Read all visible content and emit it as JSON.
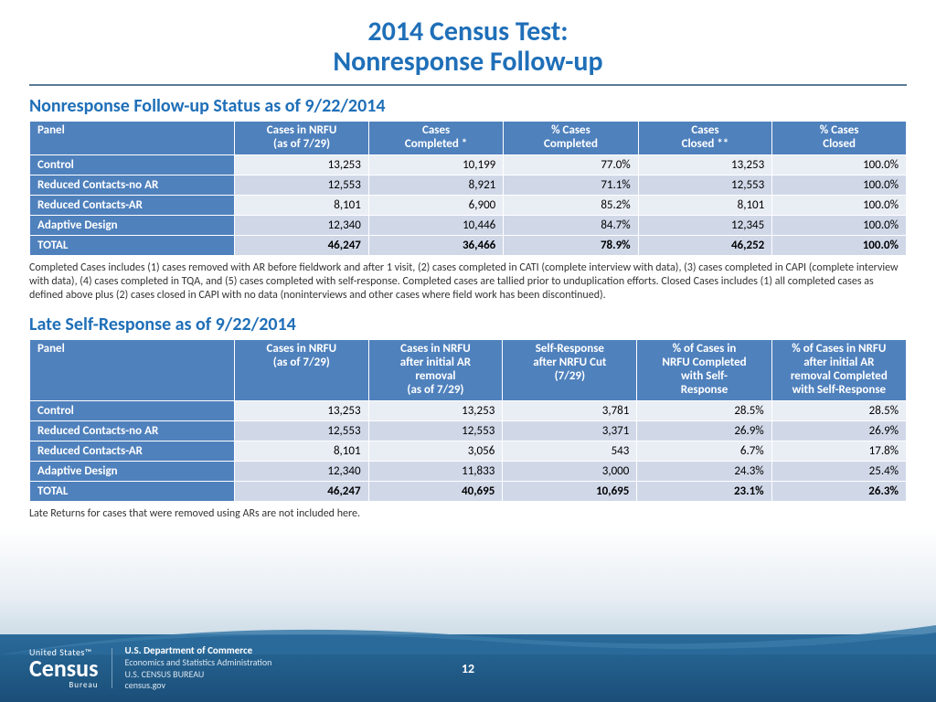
{
  "title_line1": "2014 Census Test:",
  "title_line2": "Nonresponse Follow-up",
  "section1_title": "Nonresponse Follow-up Status as of 9/22/2014",
  "section2_title": "Late Self-Response as of 9/22/2014",
  "table1": {
    "headers": [
      "Panel",
      "Cases in NRFU (as of 7/29)",
      "Cases Completed *",
      "% Cases Completed",
      "Cases Closed **",
      "% Cases Closed"
    ],
    "rows": [
      [
        "Control",
        "13,253",
        "10,199",
        "77.0%",
        "13,253",
        "100.0%"
      ],
      [
        "Reduced Contacts-no AR",
        "12,553",
        "8,921",
        "71.1%",
        "12,553",
        "100.0%"
      ],
      [
        "Reduced Contacts-AR",
        "8,101",
        "6,900",
        "85.2%",
        "8,101",
        "100.0%"
      ],
      [
        "Adaptive Design",
        "12,340",
        "10,446",
        "84.7%",
        "12,345",
        "100.0%"
      ],
      [
        "TOTAL",
        "46,247",
        "36,466",
        "78.9%",
        "46,252",
        "100.0%"
      ]
    ]
  },
  "footnote1": "Completed Cases includes (1) cases removed with AR before fieldwork and after 1 visit, (2) cases completed in CATI (complete interview with data), (3) cases completed in CAPI (complete interview with data), (4) cases completed in TQA, and (5) cases completed with self-response.  Completed cases are tallied prior to unduplication efforts.  Closed Cases includes (1) all completed cases as defined above plus (2) cases closed in CAPI with no data (noninterviews and other cases where field work has been discontinued).",
  "table2": {
    "headers": [
      "Panel",
      "Cases in NRFU (as of 7/29)",
      "Cases in NRFU after initial AR removal (as of 7/29)",
      "Self-Response after NRFU Cut (7/29)",
      "% of Cases in NRFU Completed with Self-Response",
      "% of Cases in NRFU after initial AR removal Completed with Self-Response"
    ],
    "rows": [
      [
        "Control",
        "13,253",
        "13,253",
        "3,781",
        "28.5%",
        "28.5%"
      ],
      [
        "Reduced Contacts-no AR",
        "12,553",
        "12,553",
        "3,371",
        "26.9%",
        "26.9%"
      ],
      [
        "Reduced Contacts-AR",
        "8,101",
        "3,056",
        "543",
        "6.7%",
        "17.8%"
      ],
      [
        "Adaptive Design",
        "12,340",
        "11,833",
        "3,000",
        "24.3%",
        "25.4%"
      ],
      [
        "TOTAL",
        "46,247",
        "40,695",
        "10,695",
        "23.1%",
        "26.3%"
      ]
    ]
  },
  "footnote2": "Late Returns for cases that were removed using ARs are not included here.",
  "footer": {
    "logo_united": "United States™",
    "logo_census": "Census",
    "logo_bureau": "Bureau",
    "dept_l1": "U.S. Department of Commerce",
    "dept_l2": "Economics and Statistics Administration",
    "dept_l3": "U.S. CENSUS BUREAU",
    "dept_l4": "census.gov",
    "page": "12"
  },
  "colors": {
    "title": "#1f6fb8",
    "header_bg": "#4f81bd",
    "row_odd": "#e9edf4",
    "row_even": "#d0d8e8",
    "footer_top": "#2a6a9a",
    "footer_bot": "#1a4e78"
  }
}
